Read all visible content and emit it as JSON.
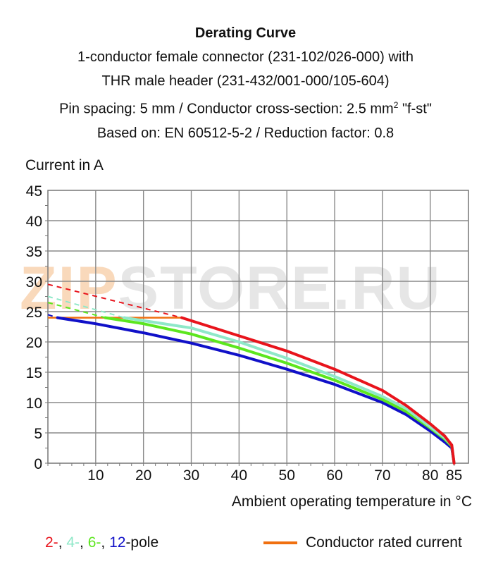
{
  "title": {
    "main": "Derating Curve",
    "line2": "1-conductor female connector (231-102/026-000) with",
    "line3": "THR male header (231-432/001-000/105-604)",
    "line4_prefix": "Pin spacing: 5 mm / Conductor cross-section: 2.5 mm",
    "line4_sup": "2",
    "line4_suffix": " \"f-st\"",
    "line5": "Based on: EN 60512-5-2 / Reduction factor: 0.8"
  },
  "watermark": {
    "accent": "ZIP",
    "rest": "STORE.RU"
  },
  "chart_data": {
    "type": "line",
    "xlabel": "Ambient operating temperature in °C",
    "ylabel": "Current in A",
    "xlim": [
      0,
      88
    ],
    "ylim": [
      0,
      45
    ],
    "xticks": [
      10,
      20,
      30,
      40,
      50,
      60,
      70,
      80,
      85
    ],
    "yticks": [
      0,
      5,
      10,
      15,
      20,
      25,
      30,
      35,
      40,
      45
    ],
    "grid": true,
    "series": [
      {
        "name": "2-",
        "color": "#e8141c",
        "dashed": {
          "x": [
            0,
            28
          ],
          "y": [
            29.5,
            24.0
          ]
        },
        "x": [
          28,
          40,
          50,
          60,
          70,
          75,
          80,
          83,
          84.5,
          85
        ],
        "y": [
          24.0,
          21.0,
          18.5,
          15.5,
          12.0,
          9.5,
          6.5,
          4.5,
          3.0,
          0
        ]
      },
      {
        "name": "4-",
        "color": "#8fe8c8",
        "dashed": {
          "x": [
            0,
            16
          ],
          "y": [
            27.5,
            24.0
          ]
        },
        "x": [
          16,
          30,
          40,
          50,
          60,
          70,
          75,
          80,
          83,
          84.5,
          85
        ],
        "y": [
          24.0,
          22.3,
          20.0,
          17.3,
          14.3,
          11.0,
          9.0,
          6.0,
          4.2,
          3.0,
          0
        ]
      },
      {
        "name": "6-",
        "color": "#5ce61e",
        "dashed": {
          "x": [
            0,
            12
          ],
          "y": [
            26.5,
            24.0
          ]
        },
        "x": [
          12,
          20,
          30,
          40,
          50,
          60,
          70,
          75,
          80,
          83,
          84.5,
          85
        ],
        "y": [
          24.0,
          23.0,
          21.3,
          19.0,
          16.5,
          13.7,
          10.5,
          8.5,
          5.8,
          4.0,
          2.8,
          0
        ]
      },
      {
        "name": "12",
        "color": "#1010c8",
        "dashed": {
          "x": [
            0,
            2
          ],
          "y": [
            24.5,
            24.0
          ]
        },
        "x": [
          2,
          10,
          20,
          30,
          40,
          50,
          60,
          70,
          75,
          80,
          83,
          84.5,
          85
        ],
        "y": [
          24.0,
          23.0,
          21.5,
          19.8,
          17.8,
          15.5,
          13.0,
          10.0,
          8.0,
          5.3,
          3.5,
          2.5,
          0
        ]
      }
    ],
    "rated_current": {
      "name": "Conductor rated current",
      "color": "#f07010",
      "value": 24,
      "x": [
        0,
        28
      ]
    }
  },
  "legend": {
    "pole_items": [
      {
        "label": "2-",
        "color": "#e8141c"
      },
      {
        "label": "4-",
        "color": "#8fe8c8"
      },
      {
        "label": "6-",
        "color": "#5ce61e"
      },
      {
        "label": "12",
        "color": "#1010c8"
      }
    ],
    "pole_suffix": "-pole",
    "rated_label": "Conductor rated current",
    "rated_color": "#f07010"
  }
}
